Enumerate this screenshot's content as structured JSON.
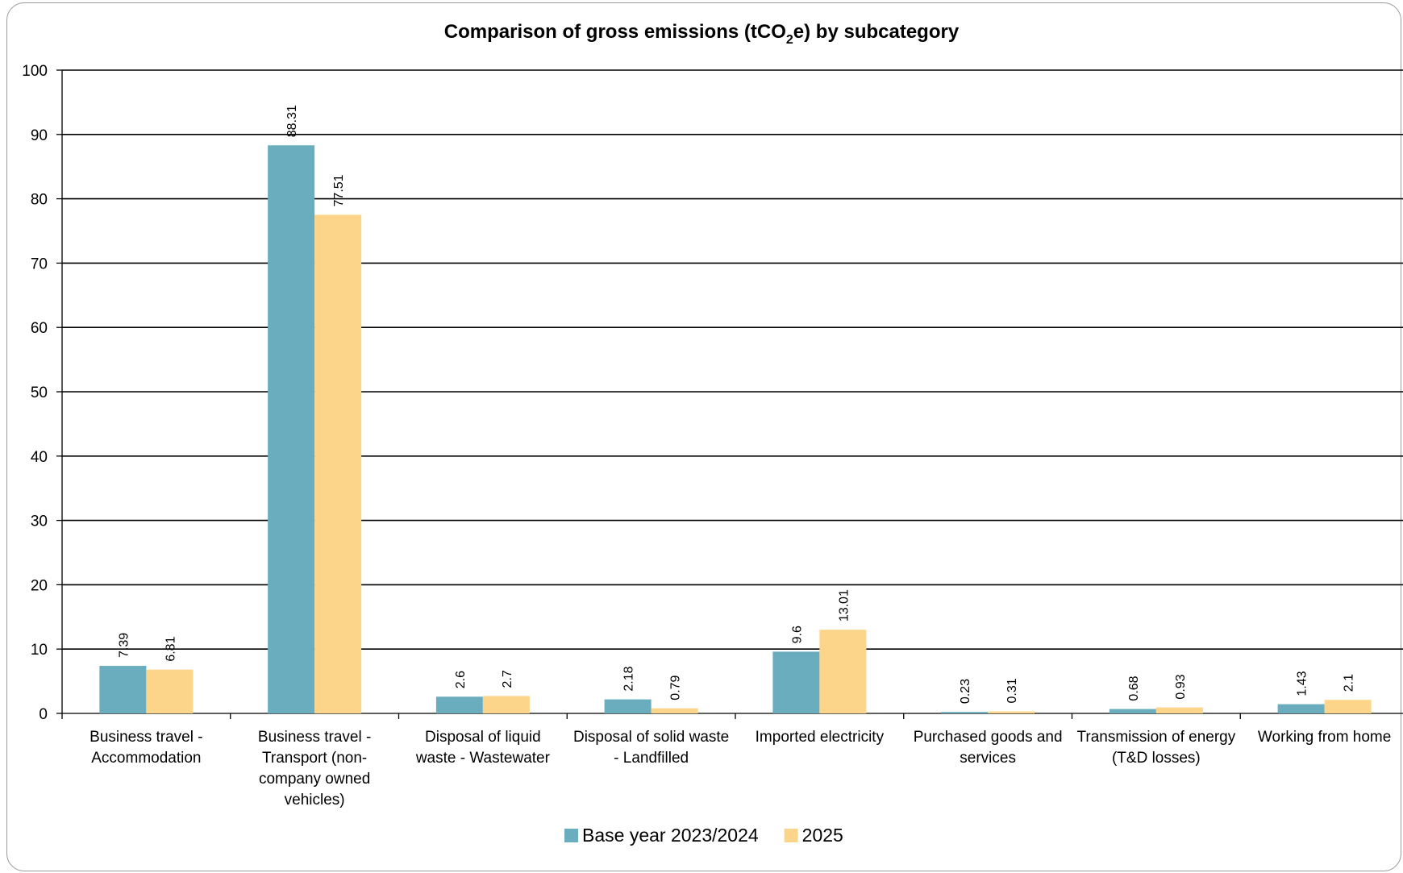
{
  "chart_data": {
    "type": "bar",
    "title": "Comparison of gross emissions (tCO",
    "title_sub": "2",
    "title_tail": "e) by subcategory",
    "xlabel": "",
    "ylabel": "",
    "ylim": [
      0,
      100
    ],
    "yticks": [
      0,
      10,
      20,
      30,
      40,
      50,
      60,
      70,
      80,
      90,
      100
    ],
    "grid": true,
    "legend_position": "bottom",
    "categories": [
      [
        "Business travel -",
        "Accommodation"
      ],
      [
        "Business travel -",
        "Transport (non-",
        "company owned",
        "vehicles)"
      ],
      [
        "Disposal of liquid",
        "waste - Wastewater"
      ],
      [
        "Disposal of solid waste",
        "- Landfilled"
      ],
      [
        "Imported electricity"
      ],
      [
        "Purchased goods and",
        "services"
      ],
      [
        "Transmission of energy",
        "(T&D losses)"
      ],
      [
        "Working from home"
      ]
    ],
    "series": [
      {
        "name": "Base year 2023/2024",
        "color": "#6aadbe",
        "values": [
          7.39,
          88.31,
          2.6,
          2.18,
          9.6,
          0.23,
          0.68,
          1.43
        ]
      },
      {
        "name": "2025",
        "color": "#fdd58a",
        "values": [
          6.81,
          77.51,
          2.7,
          0.79,
          13.01,
          0.31,
          0.93,
          2.1
        ]
      }
    ]
  }
}
